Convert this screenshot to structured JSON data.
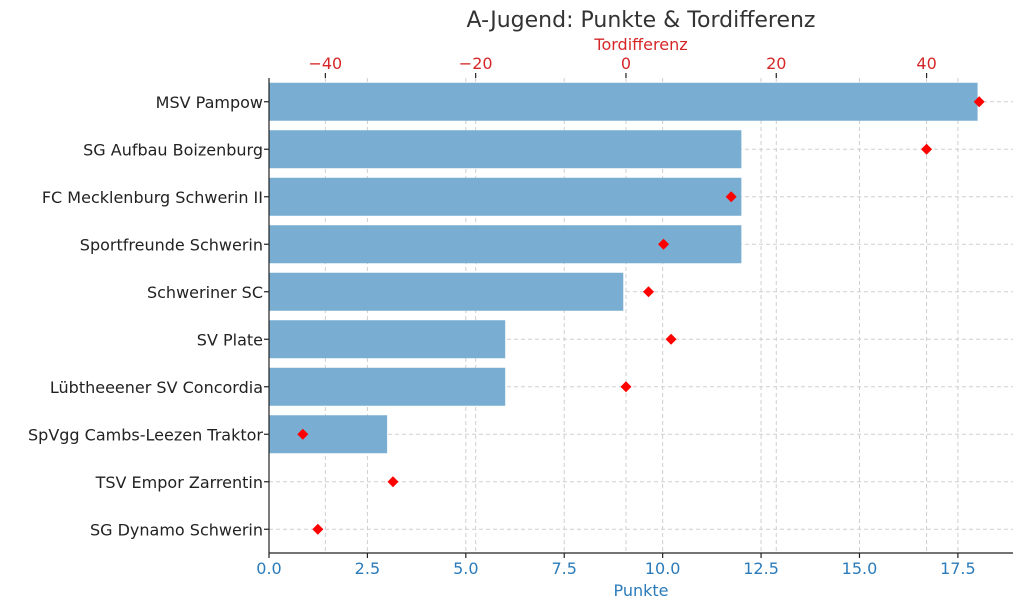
{
  "chart_data": {
    "type": "bar",
    "title": "A-Jugend: Punkte & Tordifferenz",
    "categories": [
      "MSV Pampow",
      "SG Aufbau Boizenburg",
      "FC Mecklenburg Schwerin II",
      "Sportfreunde Schwerin",
      "Schweriner SC",
      "SV Plate",
      "Lübtheeener SV Concordia",
      "SpVgg Cambs-Leezen Traktor",
      "TSV Empor Zarrentin",
      "SG Dynamo Schwerin"
    ],
    "series": [
      {
        "name": "Punkte",
        "axis": "bottom",
        "mark": "bar",
        "color": "#7aadd2",
        "values": [
          18,
          12,
          12,
          12,
          9,
          6,
          6,
          3,
          0,
          0
        ]
      },
      {
        "name": "Tordifferenz",
        "axis": "top",
        "mark": "diamond",
        "color": "#ff0000",
        "values": [
          47,
          40,
          14,
          5,
          3,
          6,
          0,
          -43,
          -31,
          -41
        ]
      }
    ],
    "xlabel": "Punkte",
    "xlabel_color": "#2b7bba",
    "xlim": [
      0,
      18.9
    ],
    "xticks": [
      0,
      2.5,
      5,
      7.5,
      10,
      12.5,
      15,
      17.5
    ],
    "xtick_labels": [
      "0.0",
      "2.5",
      "5.0",
      "7.5",
      "10.0",
      "12.5",
      "15.0",
      "17.5"
    ],
    "x2label": "Tordifferenz",
    "x2label_color": "#d62728",
    "x2lim": [
      -47.5,
      51.5
    ],
    "x2ticks": [
      -40,
      -20,
      0,
      20,
      40
    ],
    "x2tick_labels": [
      "−40",
      "−20",
      "0",
      "20",
      "40"
    ],
    "grid": true
  }
}
